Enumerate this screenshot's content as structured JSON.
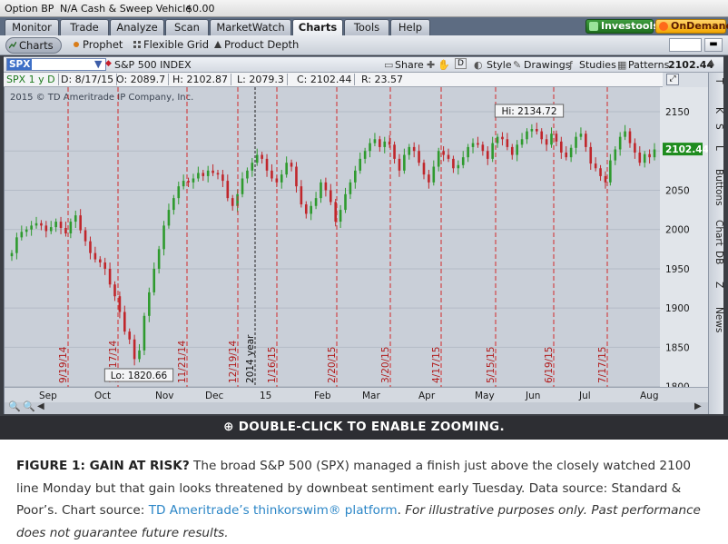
{
  "titlebar": {
    "account": "Option BP",
    "na": "N/A",
    "cash_label": "Cash & Sweep Vehicle",
    "cash_value": "$0.00"
  },
  "main_tabs": [
    {
      "label": "Monitor",
      "active": false
    },
    {
      "label": "Trade",
      "active": false
    },
    {
      "label": "Analyze",
      "active": false
    },
    {
      "label": "Scan",
      "active": false
    },
    {
      "label": "MarketWatch",
      "active": false
    },
    {
      "label": "Charts",
      "active": true
    },
    {
      "label": "Tools",
      "active": false
    },
    {
      "label": "Help",
      "active": false
    }
  ],
  "right_buttons": {
    "investools": "Investools",
    "ondemand": "OnDemand"
  },
  "sub_tabs": [
    {
      "label": "Charts",
      "active": true
    },
    {
      "label": "Prophet",
      "active": false
    },
    {
      "label": "Flexible Grid",
      "active": false
    },
    {
      "label": "Product Depth",
      "active": false
    }
  ],
  "symbol": {
    "ticker": "SPX",
    "name": "S&P 500 INDEX",
    "last_price": "2102.44"
  },
  "toolbar": {
    "share": "Share",
    "style": "Style",
    "drawings": "Drawings",
    "studies": "Studies",
    "patterns": "Patterns"
  },
  "info_row": {
    "period": "SPX 1 y D",
    "date": "D: 8/17/15",
    "open": "O: 2089.7",
    "high": "H: 2102.87",
    "low": "L: 2079.3",
    "close": "C: 2102.44",
    "range": "R: 23.57"
  },
  "copyright": "2015 © TD Ameritrade IP Company, Inc.",
  "right_panel_labels": [
    "T",
    "K",
    "S",
    "L",
    "Buttons",
    "Chart",
    "DB",
    "Z",
    "News"
  ],
  "colors": {
    "up": "#2e9a2e",
    "down": "#c0262b",
    "event_line": "#d22a2a",
    "plot_bg": "#c9cfd8",
    "price_box": "#1e8c1e"
  },
  "chart_data": {
    "type": "candlestick",
    "title": "S&P 500 INDEX",
    "ylim": [
      1800,
      2160
    ],
    "y_ticks": [
      "2150",
      "2100",
      "2050",
      "2000",
      "1950",
      "1900",
      "1850",
      "1800"
    ],
    "x_ticks": [
      "Sep",
      "Oct",
      "Nov",
      "Dec",
      "15",
      "Feb",
      "Mar",
      "Apr",
      "May",
      "Jun",
      "Jul",
      "Aug"
    ],
    "high_label": "Hi: 2134.72",
    "low_label": "Lo: 1820.66",
    "last_price_label": "2102.44",
    "event_lines": [
      "9/19/14",
      "10/17/14",
      "11/21/14",
      "12/19/14",
      "2014 year",
      "1/16/15",
      "2/20/15",
      "3/20/15",
      "4/17/15",
      "5/15/15",
      "6/19/15",
      "7/17/15"
    ],
    "series": [
      {
        "values": [
          1970,
          1990,
          1997,
          2000,
          2005,
          2008,
          2005,
          1998,
          2003,
          2010,
          2002,
          1995,
          2010,
          2018,
          1999,
          1985,
          1970,
          1962,
          1958,
          1950,
          1930,
          1915,
          1895,
          1870,
          1860,
          1835,
          1846,
          1890,
          1920,
          1950,
          1975,
          2005,
          2025,
          2040,
          2055,
          2062,
          2060,
          2065,
          2072,
          2068,
          2075,
          2072,
          2070,
          2062,
          2040,
          2030,
          2045,
          2065,
          2075,
          2085,
          2095,
          2090,
          2075,
          2065,
          2060,
          2070,
          2085,
          2080,
          2055,
          2032,
          2020,
          2030,
          2040,
          2060,
          2050,
          2035,
          2010,
          2025,
          2045,
          2060,
          2075,
          2090,
          2100,
          2110,
          2115,
          2105,
          2112,
          2108,
          2090,
          2075,
          2095,
          2105,
          2100,
          2085,
          2070,
          2060,
          2080,
          2100,
          2095,
          2090,
          2078,
          2082,
          2092,
          2105,
          2110,
          2108,
          2100,
          2090,
          2110,
          2118,
          2115,
          2105,
          2095,
          2108,
          2115,
          2125,
          2128,
          2125,
          2115,
          2108,
          2122,
          2112,
          2098,
          2092,
          2104,
          2118,
          2122,
          2105,
          2084,
          2078,
          2068,
          2060,
          2088,
          2102,
          2118,
          2125,
          2110,
          2098,
          2085,
          2096,
          2092,
          2102
        ]
      }
    ]
  },
  "banner": "DOUBLE-CLICK TO ENABLE ZOOMING.",
  "caption": {
    "lead": "FIGURE 1: GAIN AT RISK?",
    "body": " The broad S&P 500 (SPX) managed a finish just above the closely watched 2100 line Monday but that gain looks threatened by downbeat sentiment early Tuesday. Data source: Standard & Poor’s. Chart source: ",
    "link": "TD Ameritrade’s thinkorswim® platform",
    "tail_sep": ". ",
    "italic": "For illustrative purposes only. Past performance does not guarantee future results."
  }
}
